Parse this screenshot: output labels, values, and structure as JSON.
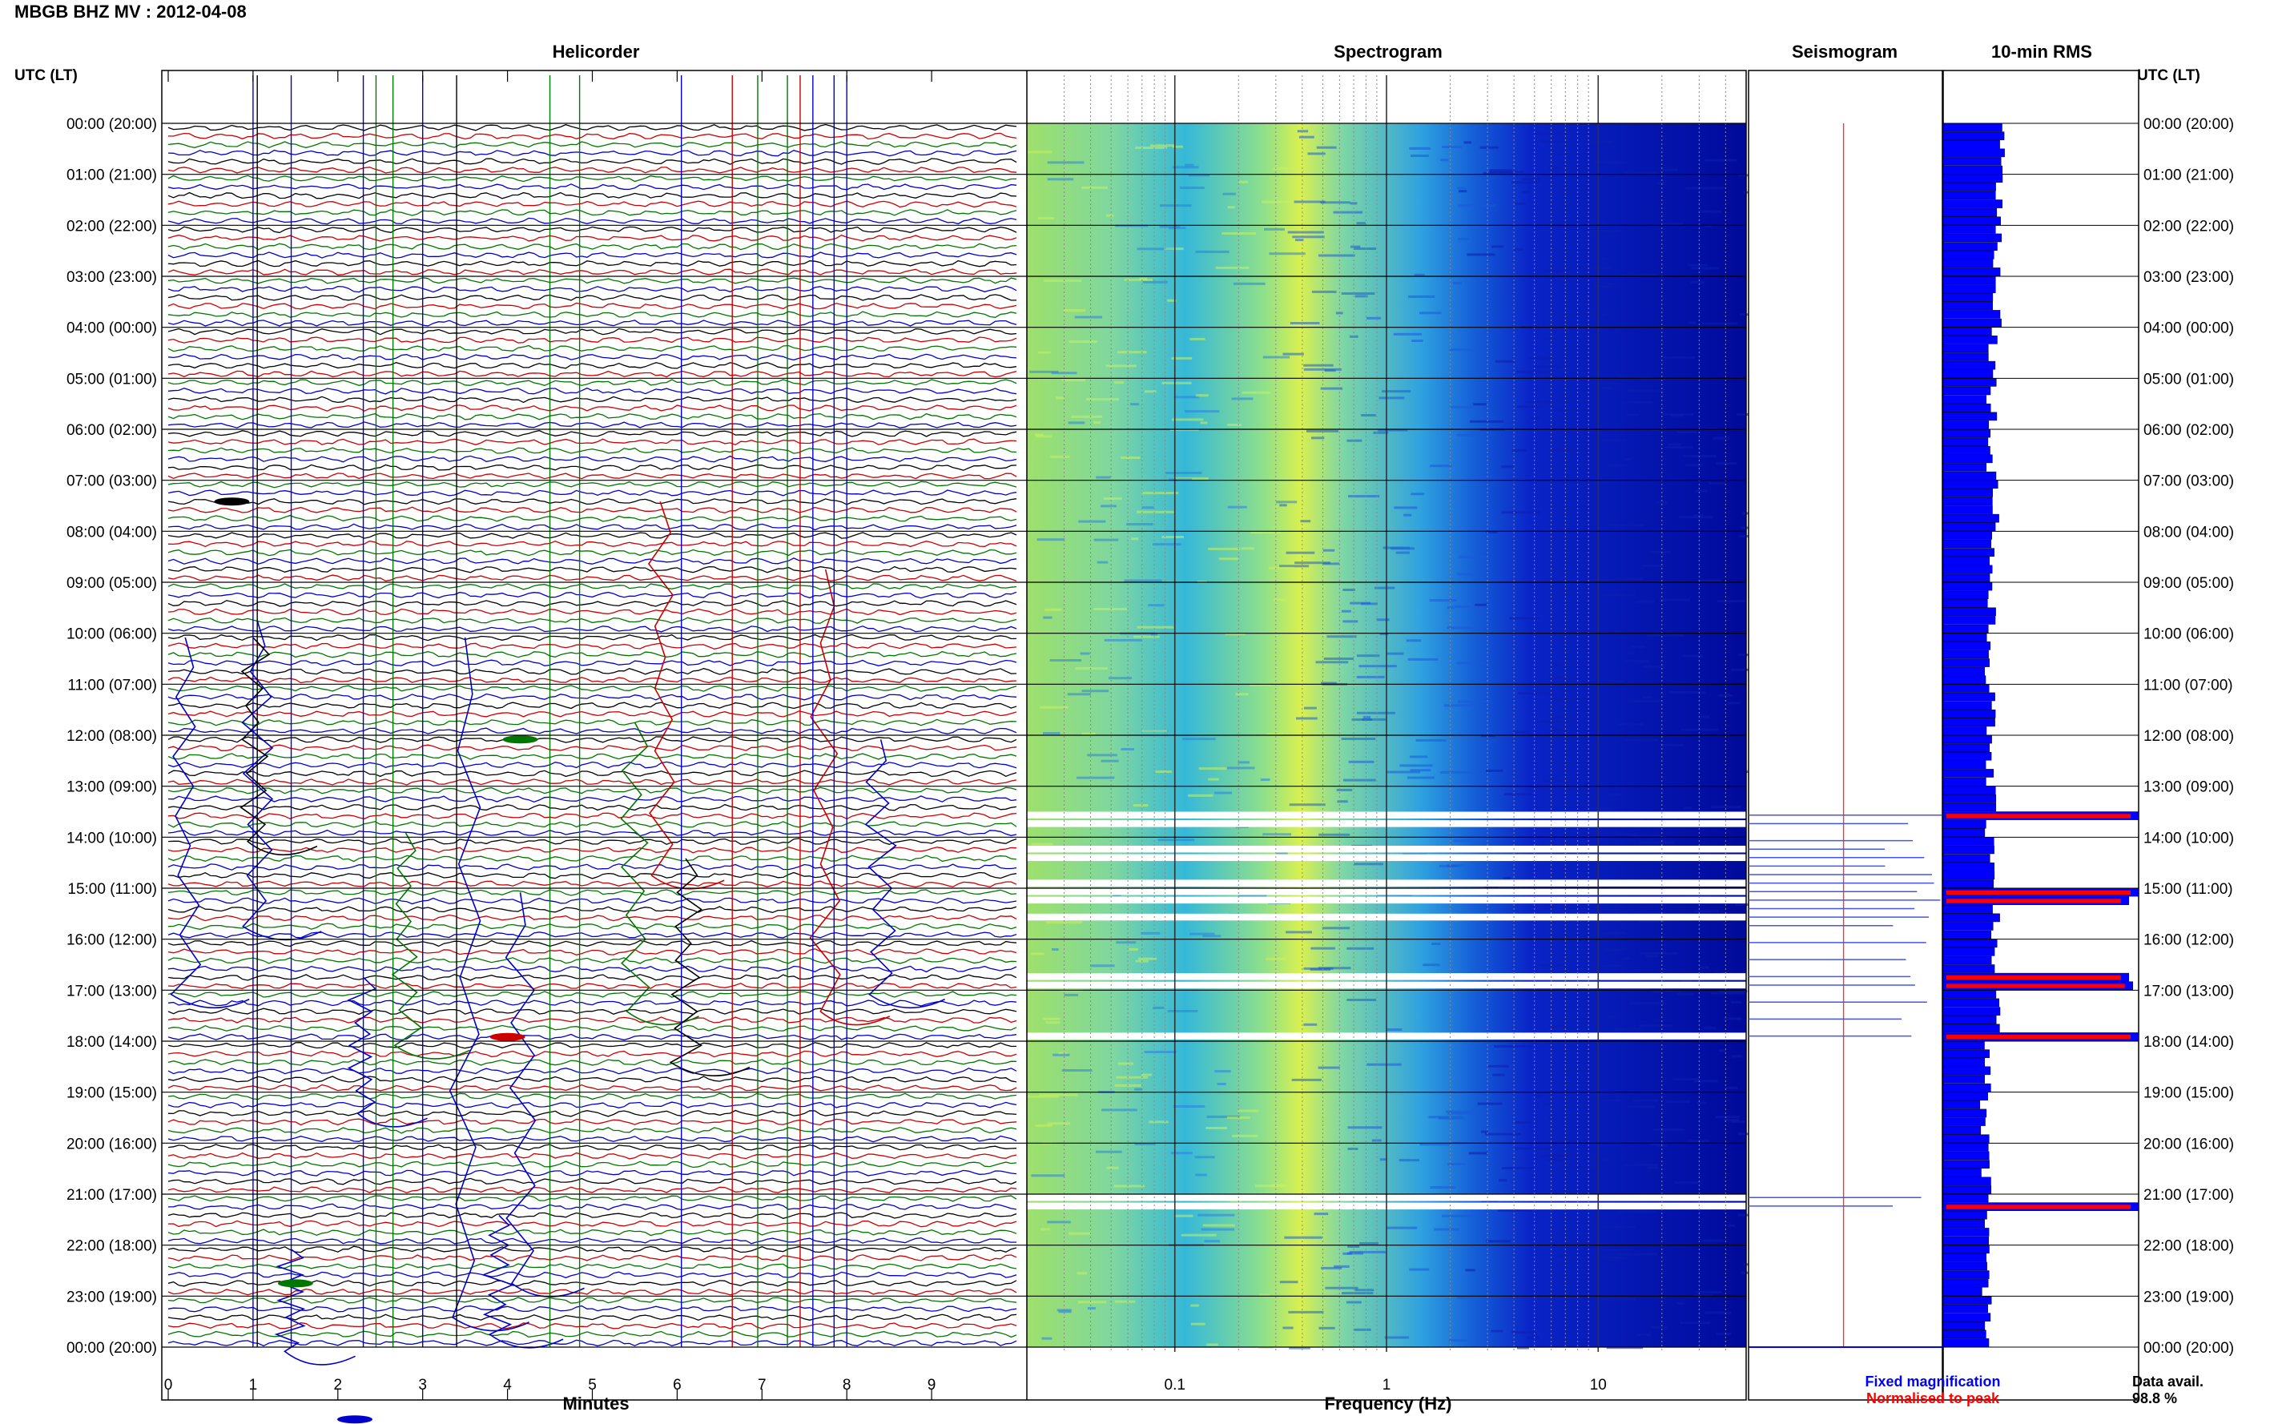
{
  "header": {
    "title": "MBGB BHZ MV : 2012-04-08"
  },
  "panels": {
    "helicorder": "Helicorder",
    "spectrogram": "Spectrogram",
    "seismogram": "Seismogram",
    "rms": "10-min RMS"
  },
  "axis_labels": {
    "left_y": "UTC (LT)",
    "right_y": "UTC (LT)",
    "helicorder_x": "Minutes",
    "spectrogram_x": "Frequency (Hz)"
  },
  "legend": {
    "fixed": "Fixed magnification",
    "normalised": "Normalised to peak",
    "fixed_color": "#0000ff",
    "normalised_color": "#ff0000"
  },
  "data_avail": {
    "label": "Data avail.",
    "value": "98.8 %"
  },
  "colors": {
    "trace_cycle": [
      "#000000",
      "#cc0000",
      "#007700",
      "#0000cc"
    ],
    "spectrogram_low": "#000099",
    "spectrogram_high": "#ffff33",
    "rms_bar": "#0000ff",
    "rms_bar_peak": "#ff0000"
  },
  "chart_data": [
    {
      "type": "line",
      "name": "Helicorder",
      "xlabel": "Minutes",
      "ylabel": "UTC (LT)",
      "xlim": [
        0,
        10
      ],
      "x_ticks": [
        0,
        1,
        2,
        3,
        4,
        5,
        6,
        7,
        8,
        9
      ],
      "time_ticks": [
        "00:00 (20:00)",
        "01:00 (21:00)",
        "02:00 (22:00)",
        "03:00 (23:00)",
        "04:00 (00:00)",
        "05:00 (01:00)",
        "06:00 (02:00)",
        "07:00 (03:00)",
        "08:00 (04:00)",
        "09:00 (05:00)",
        "10:00 (06:00)",
        "11:00 (07:00)",
        "12:00 (08:00)",
        "13:00 (09:00)",
        "14:00 (10:00)",
        "15:00 (11:00)",
        "16:00 (12:00)",
        "17:00 (13:00)",
        "18:00 (14:00)",
        "19:00 (15:00)",
        "20:00 (16:00)",
        "21:00 (17:00)",
        "22:00 (18:00)",
        "23:00 (19:00)",
        "00:00 (20:00)"
      ],
      "traces_per_hour": 6,
      "minutes_per_trace": 10
    },
    {
      "type": "heatmap",
      "name": "Spectrogram",
      "xlabel": "Frequency (Hz)",
      "x_scale": "log",
      "xlim": [
        0.02,
        50
      ],
      "x_ticks": [
        0.1,
        1,
        10
      ],
      "x_tick_labels": [
        "0.1",
        "1",
        "10"
      ]
    },
    {
      "type": "line",
      "name": "Seismogram",
      "series": [
        {
          "name": "Fixed magnification",
          "color": "#0000ff"
        },
        {
          "name": "Normalised to peak",
          "color": "#ff0000"
        }
      ]
    },
    {
      "type": "bar",
      "name": "10-min RMS",
      "orientation": "horizontal",
      "interval_minutes": 10,
      "note": "relative RMS amplitude per 10-minute window, 0-1 of panel width",
      "hour_levels": [
        0.3,
        0.29,
        0.28,
        0.28,
        0.26,
        0.25,
        0.25,
        0.27,
        0.25,
        0.24,
        0.24,
        0.24,
        0.24,
        0.24,
        0.26,
        0.27,
        0.25,
        0.27,
        0.22,
        0.21,
        0.22,
        0.24,
        0.22,
        0.24
      ],
      "peak_windows": [
        {
          "index": 81,
          "value": 1.0
        },
        {
          "index": 90,
          "value": 1.0
        },
        {
          "index": 91,
          "value": 0.95
        },
        {
          "index": 100,
          "value": 0.95
        },
        {
          "index": 101,
          "value": 0.97
        },
        {
          "index": 107,
          "value": 1.0
        },
        {
          "index": 127,
          "value": 1.0
        }
      ],
      "data_gap_windows": [
        81,
        82,
        85,
        86,
        89,
        90,
        91,
        93,
        100,
        101,
        107,
        126,
        127
      ]
    }
  ]
}
